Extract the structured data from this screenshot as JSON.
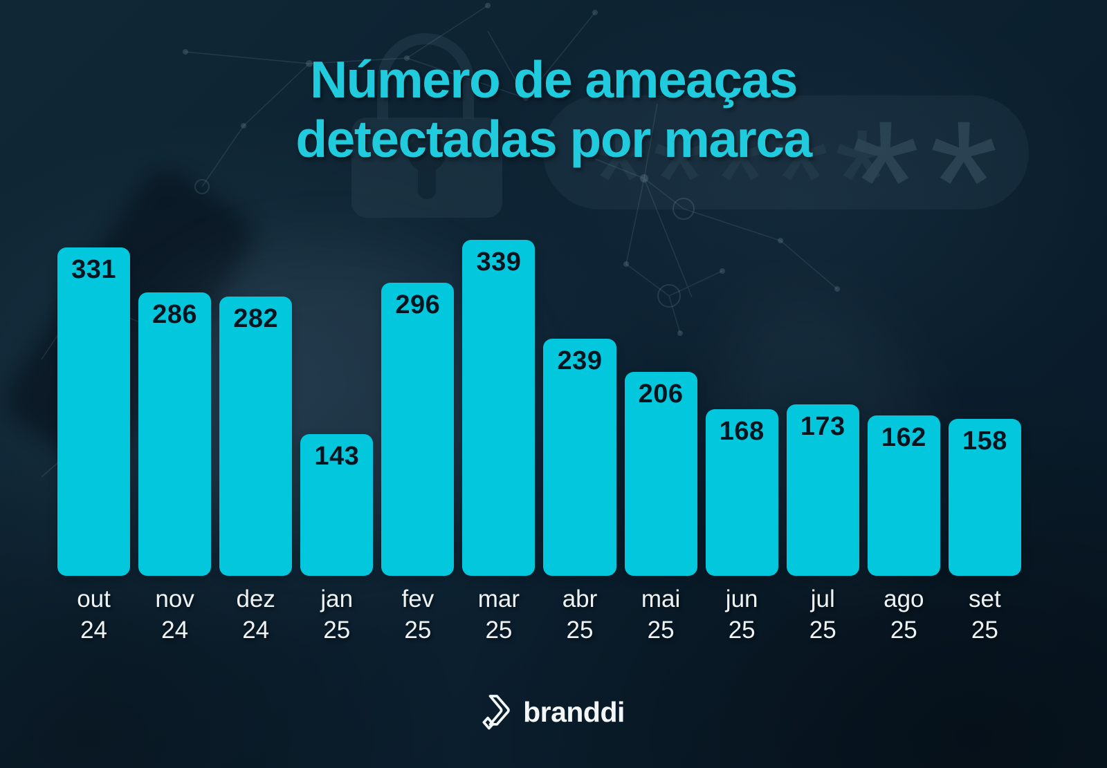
{
  "title": {
    "line1": "Número de ameaças",
    "line2": "detectadas por marca"
  },
  "chart_data": {
    "type": "bar",
    "title": "Número de ameaças detectadas por marca",
    "categories": [
      {
        "month": "out",
        "year": "24"
      },
      {
        "month": "nov",
        "year": "24"
      },
      {
        "month": "dez",
        "year": "24"
      },
      {
        "month": "jan",
        "year": "25"
      },
      {
        "month": "fev",
        "year": "25"
      },
      {
        "month": "mar",
        "year": "25"
      },
      {
        "month": "abr",
        "year": "25"
      },
      {
        "month": "mai",
        "year": "25"
      },
      {
        "month": "jun",
        "year": "25"
      },
      {
        "month": "jul",
        "year": "25"
      },
      {
        "month": "ago",
        "year": "25"
      },
      {
        "month": "set",
        "year": "25"
      }
    ],
    "values": [
      331,
      286,
      282,
      143,
      296,
      339,
      239,
      206,
      168,
      173,
      162,
      158
    ],
    "xlabel": "",
    "ylabel": "",
    "ylim": [
      0,
      339
    ],
    "grid": false,
    "legend": "none",
    "value_labels_shown": true
  },
  "footer": {
    "brand": "branddi"
  },
  "background": {
    "decorations": [
      "padlock-icon",
      "password-field-pill",
      "asterisks",
      "network-constellation"
    ],
    "asterisks_small": "*****",
    "asterisks_large": "**"
  },
  "colors": {
    "title_cyan": "#20cbdd",
    "bar_cyan": "#03c7dd",
    "background_navy": "#0c2131",
    "value_label_dark": "#05151f",
    "axis_label_white": "#eef3f5"
  }
}
